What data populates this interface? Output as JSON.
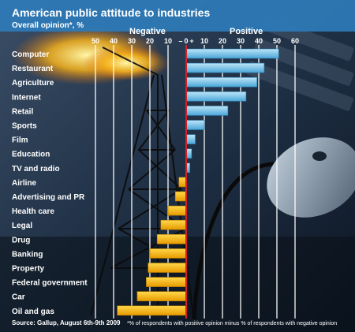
{
  "chart_data": {
    "type": "bar",
    "title": "American public attitude to industries",
    "subtitle": "Overall opinion*, %",
    "negative_label": "Negative",
    "positive_label": "Positive",
    "tick_labels": [
      "50",
      "40",
      "30",
      "20",
      "10",
      "–",
      "0",
      "+",
      "10",
      "20",
      "30",
      "40",
      "50",
      "60"
    ],
    "xlim": [
      -50,
      60
    ],
    "categories": [
      "Computer",
      "Restaurant",
      "Agriculture",
      "Internet",
      "Retail",
      "Sports",
      "Film",
      "Education",
      "TV and radio",
      "Airline",
      "Advertising and PR",
      "Health care",
      "Legal",
      "Drug",
      "Banking",
      "Property",
      "Federal government",
      "Car",
      "Oil and gas"
    ],
    "values": [
      51,
      43,
      39,
      33,
      23,
      10,
      5,
      3,
      2,
      -4,
      -6,
      -10,
      -14,
      -16,
      -20,
      -21,
      -22,
      -27,
      -38
    ],
    "source": "Source: Gallup, August 6th-9th 2009",
    "footnote": "*% of respondents with positive opinion minus % of respondents with negative opinion",
    "colors": {
      "positive": "#7cc8ec",
      "negative": "#f4b400",
      "title_bg": "#2e7bb8",
      "axis": "#d61f26"
    }
  }
}
